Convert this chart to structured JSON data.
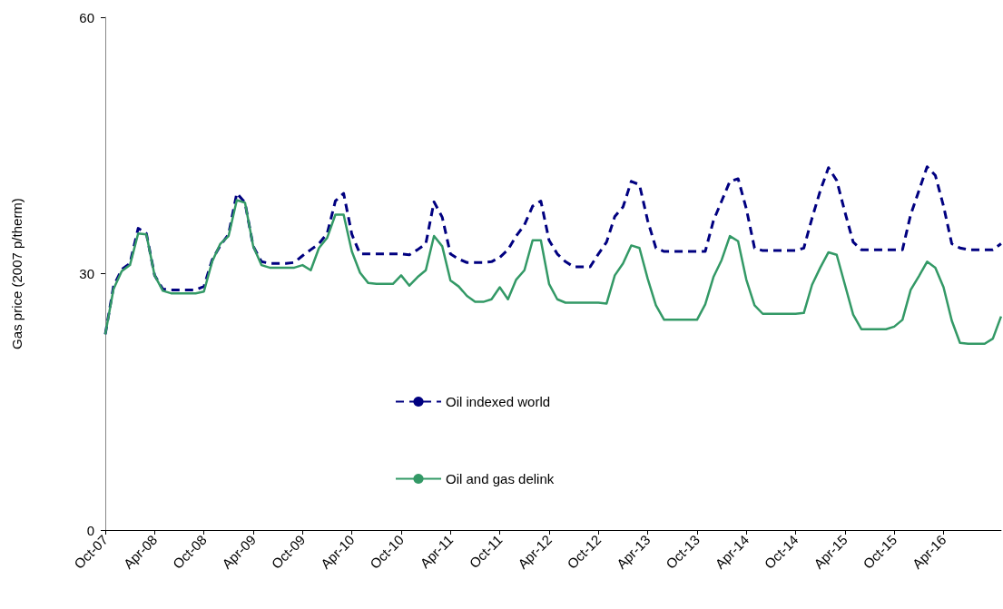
{
  "chart_data": {
    "type": "line",
    "ylabel": "Gas price (2007 p/therm)",
    "categories": [
      "Oct-07",
      null,
      null,
      null,
      null,
      null,
      "Apr-08",
      null,
      null,
      null,
      null,
      null,
      "Oct-08",
      null,
      null,
      null,
      null,
      null,
      "Apr-09",
      null,
      null,
      null,
      null,
      null,
      "Oct-09",
      null,
      null,
      null,
      null,
      null,
      "Apr-10",
      null,
      null,
      null,
      null,
      null,
      "Oct-10",
      null,
      null,
      null,
      null,
      null,
      "Apr-11",
      null,
      null,
      null,
      null,
      null,
      "Oct-11",
      null,
      null,
      null,
      null,
      null,
      "Apr-12",
      null,
      null,
      null,
      null,
      null,
      "Oct-12",
      null,
      null,
      null,
      null,
      null,
      "Apr-13",
      null,
      null,
      null,
      null,
      null,
      "Oct-13",
      null,
      null,
      null,
      null,
      null,
      "Apr-14",
      null,
      null,
      null,
      null,
      null,
      "Oct-14",
      null,
      null,
      null,
      null,
      null,
      "Apr-15",
      null,
      null,
      null,
      null,
      null,
      "Oct-15",
      null,
      null,
      null,
      null,
      null,
      "Apr-16",
      null,
      null,
      null,
      null,
      null,
      null,
      null
    ],
    "series": [
      {
        "name": "Oil indexed world",
        "color": "#000080",
        "line_style": "dashed",
        "values": [
          22.9,
          28.5,
          30.5,
          31.2,
          35.3,
          34.7,
          29.8,
          28.2,
          28.1,
          28.1,
          28.1,
          28.1,
          28.5,
          31.6,
          33.3,
          34.6,
          39.4,
          38.3,
          33.2,
          31.4,
          31.2,
          31.2,
          31.2,
          31.3,
          32.1,
          32.8,
          33.5,
          34.7,
          38.5,
          39.4,
          34.6,
          32.3,
          32.3,
          32.3,
          32.3,
          32.3,
          32.3,
          32.2,
          32.8,
          33.5,
          38.4,
          36.6,
          32.3,
          31.7,
          31.3,
          31.3,
          31.3,
          31.4,
          31.9,
          32.8,
          34.4,
          35.7,
          37.9,
          38.5,
          33.9,
          32.3,
          31.4,
          30.8,
          30.8,
          30.8,
          32.3,
          33.7,
          36.7,
          37.8,
          40.8,
          40.4,
          36.2,
          33.0,
          32.6,
          32.6,
          32.6,
          32.6,
          32.6,
          32.6,
          36.2,
          38.5,
          40.8,
          41.1,
          37.6,
          33.0,
          32.7,
          32.7,
          32.7,
          32.7,
          32.7,
          33.0,
          36.5,
          39.7,
          42.4,
          40.9,
          37.2,
          33.7,
          32.8,
          32.8,
          32.8,
          32.8,
          32.8,
          32.8,
          36.9,
          39.7,
          42.5,
          41.5,
          37.9,
          33.5,
          33.0,
          32.8,
          32.8,
          32.8,
          32.8,
          33.5
        ]
      },
      {
        "name": "Oil and gas delink",
        "color": "#339966",
        "line_style": "solid",
        "values": [
          22.9,
          28.2,
          30.3,
          31.0,
          34.7,
          34.6,
          29.8,
          28.0,
          27.7,
          27.7,
          27.7,
          27.7,
          27.9,
          31.4,
          33.5,
          34.4,
          38.6,
          38.3,
          33.2,
          31.0,
          30.7,
          30.7,
          30.7,
          30.7,
          31.0,
          30.4,
          33.0,
          34.2,
          36.9,
          36.9,
          32.6,
          30.1,
          28.9,
          28.8,
          28.8,
          28.8,
          29.8,
          28.6,
          29.6,
          30.4,
          34.4,
          33.2,
          29.2,
          28.5,
          27.4,
          26.7,
          26.7,
          27.0,
          28.4,
          27.0,
          29.3,
          30.4,
          33.9,
          33.9,
          28.8,
          27.0,
          26.6,
          26.6,
          26.6,
          26.6,
          26.6,
          26.5,
          29.8,
          31.2,
          33.3,
          33.0,
          29.4,
          26.3,
          24.6,
          24.6,
          24.6,
          24.6,
          24.6,
          26.4,
          29.6,
          31.6,
          34.4,
          33.8,
          29.3,
          26.3,
          25.3,
          25.3,
          25.3,
          25.3,
          25.3,
          25.4,
          28.7,
          30.7,
          32.5,
          32.2,
          28.7,
          25.2,
          23.5,
          23.5,
          23.5,
          23.5,
          23.8,
          24.6,
          28.1,
          29.7,
          31.4,
          30.7,
          28.4,
          24.5,
          21.9,
          21.8,
          21.8,
          21.8,
          22.4,
          25.0
        ]
      }
    ],
    "ylim": [
      0,
      60
    ],
    "yticks": [
      0,
      30,
      60
    ],
    "grid": false,
    "legend": "center",
    "marker": "none"
  }
}
